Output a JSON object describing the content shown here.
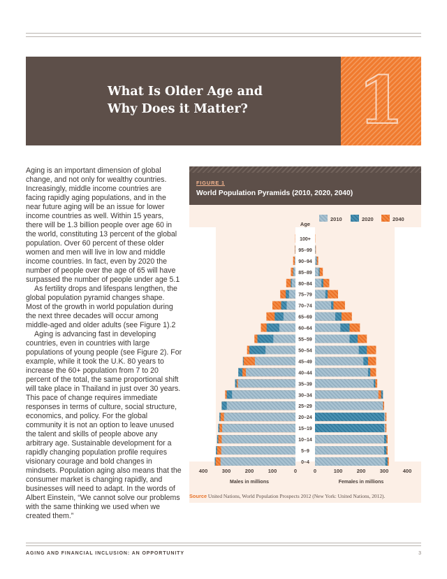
{
  "banner": {
    "title_line1": "What Is Older Age and",
    "title_line2": "Why Does it Matter?",
    "chapter_number": "1"
  },
  "body": {
    "paragraphs": [
      "Aging is an important dimension of global change, and not only for wealthy countries. Increasingly, middle income countries are facing rapidly aging populations, and in the near future aging will be an issue for lower income countries as well. Within 15 years, there will be 1.3 billion people over age 60 in the world, constituting 13 percent of the global population. Over 60 percent of these older women and men will live in low and middle income countries. In fact, even by 2020 the number of people over the age of 65 will have surpassed the number of people under age 5.1",
      "As fertility drops and lifespans lengthen, the global population pyramid changes shape. Most of the growth in world population during the next three decades will occur among middle-aged and older adults (see Figure 1).2",
      "Aging is advancing fast in developing countries, even in countries with large populations of young people (see Figure 2). For example, while it took the U.K. 80 years to increase the 60+ population from 7 to 20 percent of the total, the same proportional shift will take place in Thailand in just over 30 years. This pace of change requires immediate responses in terms of culture, social structure, economics, and policy. For the global community it is not an option to leave unused the talent and skills of people above any arbitrary age. Sustainable development for a rapidly changing population profile requires visionary courage and bold changes in mindsets. Population aging also means that the consumer market is changing rapidly, and businesses will need to adapt. In the words of Albert Einstein, “We cannot solve our problems with the same thinking we used when we created them.”"
    ]
  },
  "figure": {
    "label": "FIGURE 1",
    "title": "World Population Pyramids (2010, 2020, 2040)",
    "source_label": "Source",
    "source_text": "United Nations, World Population Prospects 2012 (New York: United Nations, 2012).",
    "colors": {
      "2010": "#9fb9c9",
      "2020": "#3d86a8",
      "2040": "#f07b2f",
      "background": "#fcefe6",
      "header": "#5d4f49"
    }
  },
  "chart_data": {
    "type": "bar",
    "orientation": "horizontal-pyramid",
    "age_axis_label": "Age",
    "categories": [
      "100+",
      "95–99",
      "90–94",
      "85–89",
      "80–84",
      "75–79",
      "70–74",
      "65–69",
      "60–64",
      "55–59",
      "50–54",
      "45–49",
      "40–44",
      "35–39",
      "30–34",
      "25–29",
      "20–24",
      "15–19",
      "10–14",
      "5–9",
      "0–4"
    ],
    "legend": [
      "2010",
      "2020",
      "2040"
    ],
    "males": {
      "xlabel": "Males in millions",
      "ticks": [
        "400",
        "300",
        "200",
        "100",
        "0"
      ],
      "xlim": [
        0,
        400
      ],
      "series": [
        {
          "name": "2010",
          "values": [
            0,
            1,
            3,
            8,
            16,
            28,
            38,
            52,
            70,
            96,
            130,
            176,
            215,
            250,
            275,
            298,
            310,
            318,
            320,
            322,
            325
          ]
        },
        {
          "name": "2020",
          "values": [
            0,
            1,
            3,
            10,
            20,
            42,
            62,
            90,
            125,
            165,
            200,
            228,
            248,
            262,
            298,
            320,
            330,
            335,
            340,
            345,
            350
          ]
        },
        {
          "name": "2040",
          "values": [
            1,
            3,
            10,
            20,
            40,
            66,
            100,
            126,
            150,
            178,
            210,
            225,
            230,
            255,
            305,
            320,
            325,
            330,
            335,
            340,
            346
          ]
        }
      ]
    },
    "females": {
      "xlabel": "Females in millions",
      "ticks": [
        "0",
        "100",
        "200",
        "300",
        "400"
      ],
      "xlim": [
        0,
        400
      ],
      "series": [
        {
          "name": "2010",
          "values": [
            0,
            2,
            6,
            16,
            28,
            45,
            70,
            88,
            110,
            150,
            190,
            210,
            230,
            255,
            275,
            295,
            305,
            305,
            300,
            300,
            305
          ]
        },
        {
          "name": "2020",
          "values": [
            0,
            2,
            8,
            20,
            36,
            55,
            80,
            115,
            150,
            185,
            225,
            230,
            240,
            262,
            295,
            295,
            300,
            300,
            310,
            310,
            315
          ]
        },
        {
          "name": "2040",
          "values": [
            1,
            4,
            14,
            34,
            62,
            100,
            130,
            160,
            195,
            225,
            265,
            265,
            265,
            270,
            287,
            300,
            310,
            310,
            315,
            315,
            320
          ]
        }
      ]
    }
  },
  "footer": {
    "left": "AGING AND FINANCIAL INCLUSION: AN OPPORTUNITY",
    "page_number": "3"
  }
}
